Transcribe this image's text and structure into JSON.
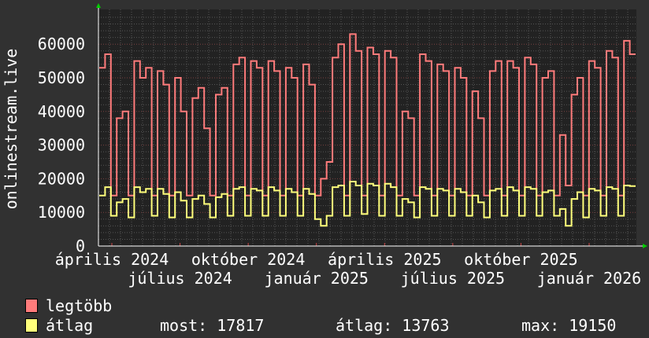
{
  "chart_data": {
    "type": "line",
    "ylabel": "onlinestream.live",
    "ylim": [
      0,
      70000
    ],
    "yticks": [
      0,
      10000,
      20000,
      30000,
      40000,
      50000,
      60000
    ],
    "xtick_labels": [
      "április 2024",
      "július 2024",
      "október 2024",
      "január 2025",
      "április 2025",
      "július 2025",
      "október 2025",
      "január 2026"
    ],
    "grid": true,
    "legend_placement": "bottom-left",
    "series": [
      {
        "name": "legtöbb",
        "color": "#ff7b7b",
        "values": [
          53000,
          57000,
          15000,
          38000,
          40000,
          15000,
          55000,
          50000,
          53000,
          15000,
          52000,
          48000,
          15000,
          50000,
          40000,
          15000,
          44000,
          47000,
          35000,
          15000,
          45000,
          47000,
          15000,
          54000,
          56000,
          15000,
          55000,
          53000,
          15000,
          55000,
          52000,
          15000,
          53000,
          50000,
          15000,
          54000,
          48000,
          15000,
          20000,
          25000,
          56000,
          60000,
          15000,
          63000,
          58000,
          15000,
          59000,
          57000,
          15000,
          58000,
          56000,
          15000,
          40000,
          38000,
          15000,
          57000,
          55000,
          15000,
          54000,
          52000,
          15000,
          53000,
          50000,
          15000,
          46000,
          38000,
          15000,
          52000,
          55000,
          15000,
          55000,
          53000,
          15000,
          56000,
          54000,
          15000,
          50000,
          52000,
          15000,
          33000,
          18000,
          45000,
          50000,
          15000,
          55000,
          53000,
          15000,
          58000,
          56000,
          15000,
          61000,
          57000
        ]
      },
      {
        "name": "átlag",
        "color": "#ffff7b",
        "values": [
          15000,
          17500,
          9000,
          13000,
          14000,
          8500,
          17500,
          16000,
          17000,
          9000,
          17000,
          15500,
          8500,
          16000,
          13500,
          8500,
          14000,
          15000,
          12500,
          8500,
          14500,
          15500,
          9000,
          17000,
          17500,
          9000,
          17000,
          16500,
          9000,
          17500,
          16500,
          9000,
          17000,
          16000,
          9000,
          17000,
          15500,
          8000,
          6000,
          9000,
          17500,
          18000,
          9000,
          19150,
          18000,
          9500,
          18500,
          18000,
          9000,
          18500,
          17500,
          9000,
          14000,
          13000,
          8500,
          17500,
          17000,
          9000,
          17000,
          16500,
          9000,
          17000,
          16000,
          9000,
          15000,
          13000,
          8500,
          16500,
          17000,
          9000,
          17500,
          16500,
          9000,
          17500,
          17000,
          9000,
          16000,
          16500,
          9000,
          11000,
          6000,
          14000,
          16000,
          8500,
          17000,
          16500,
          9000,
          17500,
          17000,
          9000,
          18000,
          17817
        ]
      }
    ]
  },
  "legend": {
    "max_label": "legtöbb",
    "avg_label": "átlag",
    "now": "most: 17817",
    "average": "átlag: 13763",
    "maximum": "max: 19150"
  },
  "colors": {
    "background": "#313131",
    "plot": "#222222",
    "arrow": "#00cc00"
  }
}
